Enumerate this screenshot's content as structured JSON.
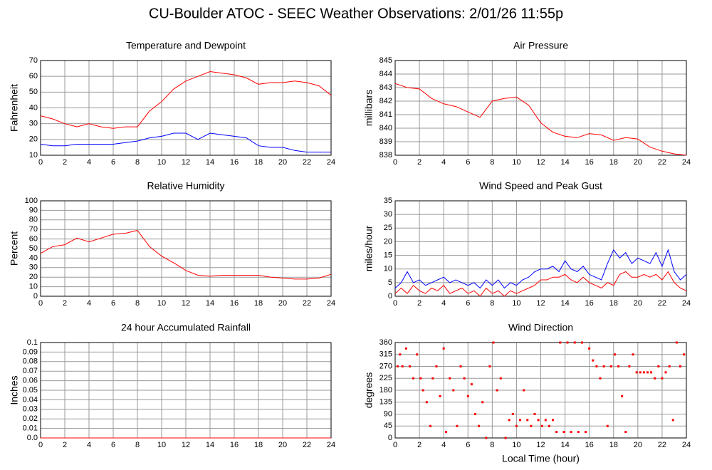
{
  "title": "CU-Boulder ATOC - SEEC Weather Observations: 2/01/26 11:55p",
  "chart_data": [
    {
      "type": "line",
      "title": "Temperature and Dewpoint",
      "ylabel": "Fahrenheit",
      "x": [
        0,
        1,
        2,
        3,
        4,
        5,
        6,
        7,
        8,
        9,
        10,
        11,
        12,
        13,
        14,
        15,
        16,
        17,
        18,
        19,
        20,
        21,
        22,
        23,
        24
      ],
      "series": [
        {
          "color": "#ff0000",
          "values": [
            35,
            33,
            30,
            28,
            30,
            28,
            27,
            28,
            28,
            38,
            44,
            52,
            57,
            60,
            63,
            62,
            61,
            59,
            55,
            56,
            56,
            57,
            56,
            54,
            48
          ]
        },
        {
          "color": "#0000ff",
          "values": [
            17,
            16,
            16,
            17,
            17,
            17,
            17,
            18,
            19,
            21,
            22,
            24,
            24,
            20,
            24,
            23,
            22,
            21,
            16,
            15,
            15,
            13,
            12,
            12,
            12
          ]
        }
      ],
      "xlim": [
        0,
        24
      ],
      "xticks": [
        0,
        2,
        4,
        6,
        8,
        10,
        12,
        14,
        16,
        18,
        20,
        22,
        24
      ],
      "ylim": [
        10,
        70
      ],
      "yticks": [
        10,
        20,
        30,
        40,
        50,
        60,
        70
      ],
      "grid": true
    },
    {
      "type": "line",
      "title": "Air Pressure",
      "ylabel": "millibars",
      "x": [
        0,
        1,
        2,
        3,
        4,
        5,
        6,
        7,
        8,
        9,
        10,
        11,
        12,
        13,
        14,
        15,
        16,
        17,
        18,
        19,
        20,
        21,
        22,
        23,
        24
      ],
      "series": [
        {
          "color": "#ff0000",
          "values": [
            843.3,
            843.0,
            842.9,
            842.2,
            841.8,
            841.6,
            841.2,
            840.8,
            842.0,
            842.2,
            842.3,
            841.7,
            840.4,
            839.7,
            839.4,
            839.3,
            839.6,
            839.5,
            839.1,
            839.3,
            839.2,
            838.6,
            838.3,
            838.1,
            838.0
          ]
        }
      ],
      "xlim": [
        0,
        24
      ],
      "xticks": [
        0,
        2,
        4,
        6,
        8,
        10,
        12,
        14,
        16,
        18,
        20,
        22,
        24
      ],
      "ylim": [
        838,
        845
      ],
      "yticks": [
        838,
        839,
        840,
        841,
        842,
        843,
        844,
        845
      ],
      "grid": true
    },
    {
      "type": "line",
      "title": "Relative Humidity",
      "ylabel": "Percent",
      "x": [
        0,
        1,
        2,
        3,
        4,
        5,
        6,
        7,
        8,
        9,
        10,
        11,
        12,
        13,
        14,
        15,
        16,
        17,
        18,
        19,
        20,
        21,
        22,
        23,
        24
      ],
      "series": [
        {
          "color": "#ff0000",
          "values": [
            45,
            52,
            54,
            61,
            57,
            61,
            65,
            66,
            69,
            52,
            42,
            35,
            27,
            22,
            21,
            22,
            22,
            22,
            22,
            20,
            19,
            18,
            18,
            19,
            23
          ]
        }
      ],
      "xlim": [
        0,
        24
      ],
      "xticks": [
        0,
        2,
        4,
        6,
        8,
        10,
        12,
        14,
        16,
        18,
        20,
        22,
        24
      ],
      "ylim": [
        0,
        100
      ],
      "yticks": [
        0,
        10,
        20,
        30,
        40,
        50,
        60,
        70,
        80,
        90,
        100
      ],
      "grid": true
    },
    {
      "type": "line",
      "title": "Wind Speed and Peak Gust",
      "ylabel": "miles/hour",
      "x": [
        0,
        0.5,
        1,
        1.5,
        2,
        2.5,
        3,
        3.5,
        4,
        4.5,
        5,
        5.5,
        6,
        6.5,
        7,
        7.5,
        8,
        8.5,
        9,
        9.5,
        10,
        10.5,
        11,
        11.5,
        12,
        12.5,
        13,
        13.5,
        14,
        14.5,
        15,
        15.5,
        16,
        16.5,
        17,
        17.5,
        18,
        18.5,
        19,
        19.5,
        20,
        20.5,
        21,
        21.5,
        22,
        22.5,
        23,
        23.5,
        24
      ],
      "series": [
        {
          "color": "#0000ff",
          "values": [
            3,
            5,
            9,
            5,
            6,
            4,
            5,
            6,
            7,
            5,
            6,
            5,
            4,
            5,
            3,
            6,
            4,
            6,
            3,
            5,
            4,
            6,
            7,
            9,
            10,
            10,
            11,
            9,
            13,
            10,
            9,
            11,
            8,
            7,
            6,
            12,
            17,
            14,
            16,
            12,
            14,
            13,
            12,
            16,
            11,
            17,
            9,
            6,
            8
          ]
        },
        {
          "color": "#ff0000",
          "values": [
            1,
            3,
            1,
            4,
            2,
            1,
            3,
            2,
            4,
            1,
            2,
            3,
            1,
            2,
            0,
            3,
            1,
            2,
            0,
            2,
            1,
            2,
            3,
            4,
            6,
            6,
            7,
            7,
            8,
            6,
            5,
            7,
            5,
            4,
            3,
            5,
            4,
            8,
            9,
            7,
            7,
            8,
            7,
            8,
            6,
            9,
            5,
            3,
            2
          ]
        }
      ],
      "xlim": [
        0,
        24
      ],
      "xticks": [
        0,
        2,
        4,
        6,
        8,
        10,
        12,
        14,
        16,
        18,
        20,
        22,
        24
      ],
      "ylim": [
        0,
        35
      ],
      "yticks": [
        0,
        5,
        10,
        15,
        20,
        25,
        30,
        35
      ],
      "grid": true
    },
    {
      "type": "line",
      "title": "24 hour Accumulated Rainfall",
      "ylabel": "Inches",
      "x": [
        0,
        1,
        2,
        3,
        4,
        5,
        6,
        7,
        8,
        9,
        10,
        11,
        12,
        13,
        14,
        15,
        16,
        17,
        18,
        19,
        20,
        21,
        22,
        23,
        24
      ],
      "series": [
        {
          "color": "#ff0000",
          "values": [
            0,
            0,
            0,
            0,
            0,
            0,
            0,
            0,
            0,
            0,
            0,
            0,
            0,
            0,
            0,
            0,
            0,
            0,
            0,
            0,
            0,
            0,
            0,
            0,
            0
          ]
        }
      ],
      "xlim": [
        0,
        24
      ],
      "xticks": [
        0,
        2,
        4,
        6,
        8,
        10,
        12,
        14,
        16,
        18,
        20,
        22,
        24
      ],
      "ylim": [
        0,
        0.1
      ],
      "yticks": [
        {
          "value": 0,
          "label": "0.0"
        },
        0.01,
        0.02,
        0.03,
        0.04,
        0.05,
        0.06,
        0.07,
        0.08,
        0.09,
        0.1
      ],
      "grid": true
    },
    {
      "type": "scatter",
      "title": "Wind Direction",
      "ylabel": "degrees",
      "xlabel": "Local Time (hour)",
      "x": [
        0.2,
        0.4,
        0.6,
        0.9,
        1.2,
        1.5,
        1.8,
        2.1,
        2.3,
        2.6,
        2.9,
        3.1,
        3.4,
        3.7,
        4.0,
        4.2,
        4.5,
        4.8,
        5.1,
        5.4,
        5.7,
        6.0,
        6.3,
        6.6,
        6.9,
        7.2,
        7.5,
        7.8,
        8.1,
        8.4,
        8.7,
        9.1,
        9.4,
        9.7,
        10.0,
        10.3,
        10.6,
        10.9,
        11.2,
        11.5,
        11.8,
        12.1,
        12.4,
        12.7,
        13.0,
        13.3,
        13.6,
        13.9,
        14.2,
        14.5,
        14.8,
        15.1,
        15.4,
        15.7,
        16.0,
        16.3,
        16.6,
        16.9,
        17.2,
        17.5,
        17.8,
        18.1,
        18.4,
        18.7,
        19.0,
        19.3,
        19.6,
        19.9,
        20.2,
        20.5,
        20.8,
        21.1,
        21.4,
        21.7,
        22.0,
        22.3,
        22.6,
        22.9,
        23.2,
        23.5,
        23.8
      ],
      "values": [
        270,
        315,
        270,
        337.5,
        270,
        225,
        315,
        225,
        180,
        135,
        45,
        225,
        270,
        157.5,
        337.5,
        22.5,
        225,
        180,
        45,
        270,
        225,
        157.5,
        202.5,
        90,
        45,
        135,
        0,
        270,
        360,
        180,
        225,
        0,
        67.5,
        90,
        45,
        67.5,
        180,
        67.5,
        45,
        90,
        67.5,
        45,
        67.5,
        45,
        67.5,
        22.5,
        360,
        22.5,
        360,
        22.5,
        360,
        22.5,
        360,
        22.5,
        337.5,
        292.5,
        270,
        225,
        270,
        45,
        270,
        315,
        270,
        157.5,
        22.5,
        270,
        315,
        247.5,
        247.5,
        247.5,
        247.5,
        247.5,
        225,
        270,
        225,
        247.5,
        270,
        67.5,
        360,
        270,
        315
      ],
      "color": "#ff0000",
      "xlim": [
        0,
        24
      ],
      "xticks": [
        0,
        2,
        4,
        6,
        8,
        10,
        12,
        14,
        16,
        18,
        20,
        22,
        24
      ],
      "ylim": [
        0,
        360
      ],
      "yticks": [
        0,
        45,
        90,
        135,
        180,
        225,
        270,
        315,
        360
      ],
      "grid": true
    }
  ]
}
